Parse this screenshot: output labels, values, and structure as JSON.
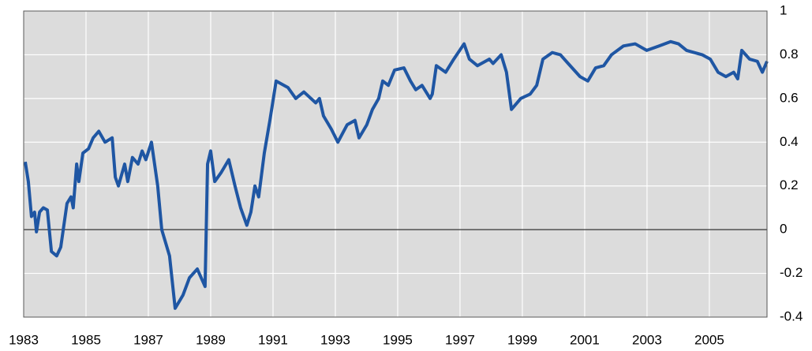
{
  "chart_data": {
    "type": "line",
    "xlim": [
      1983,
      2006.85
    ],
    "xticks": [
      1983,
      1985,
      1987,
      1989,
      1991,
      1993,
      1995,
      1997,
      1999,
      2001,
      2003,
      2005
    ],
    "ylim": [
      -0.4,
      1
    ],
    "yticks": [
      1,
      0.8,
      0.6,
      0.4,
      0.2,
      0,
      -0.2,
      -0.4
    ],
    "grid": true,
    "series": [
      {
        "color": "#1f56a3",
        "x": [
          1983.05,
          1983.15,
          1983.25,
          1983.35,
          1983.41,
          1983.51,
          1983.63,
          1983.76,
          1983.89,
          1984.06,
          1984.19,
          1984.39,
          1984.52,
          1984.59,
          1984.7,
          1984.77,
          1984.9,
          1985.08,
          1985.23,
          1985.41,
          1985.61,
          1985.84,
          1985.94,
          1986.04,
          1986.24,
          1986.34,
          1986.49,
          1986.67,
          1986.8,
          1986.92,
          1987.1,
          1987.3,
          1987.43,
          1987.68,
          1987.86,
          1988.11,
          1988.32,
          1988.57,
          1988.82,
          1988.9,
          1989.0,
          1989.13,
          1989.33,
          1989.58,
          1989.78,
          1989.96,
          1990.16,
          1990.29,
          1990.42,
          1990.54,
          1990.72,
          1990.9,
          1991.1,
          1991.48,
          1991.73,
          1991.99,
          1992.37,
          1992.49,
          1992.62,
          1992.87,
          1993.08,
          1993.38,
          1993.63,
          1993.76,
          1994.01,
          1994.19,
          1994.39,
          1994.52,
          1994.7,
          1994.9,
          1995.2,
          1995.41,
          1995.58,
          1995.78,
          1996.04,
          1996.11,
          1996.24,
          1996.54,
          1996.8,
          1997.13,
          1997.3,
          1997.56,
          1997.94,
          1998.06,
          1998.32,
          1998.49,
          1998.65,
          1998.95,
          1999.25,
          1999.46,
          1999.66,
          1999.96,
          2000.22,
          2000.47,
          2000.85,
          2001.1,
          2001.35,
          2001.61,
          2001.86,
          2002.24,
          2002.62,
          2002.99,
          2003.38,
          2003.76,
          2004.01,
          2004.27,
          2004.77,
          2005.03,
          2005.28,
          2005.53,
          2005.78,
          2005.91,
          2006.04,
          2006.29,
          2006.54,
          2006.7,
          2006.85
        ],
        "values": [
          0.31,
          0.22,
          0.06,
          0.08,
          -0.01,
          0.08,
          0.1,
          0.09,
          -0.1,
          -0.12,
          -0.08,
          0.12,
          0.15,
          0.1,
          0.3,
          0.22,
          0.35,
          0.37,
          0.42,
          0.45,
          0.4,
          0.42,
          0.24,
          0.2,
          0.3,
          0.22,
          0.33,
          0.3,
          0.36,
          0.32,
          0.4,
          0.2,
          0.0,
          -0.12,
          -0.36,
          -0.3,
          -0.22,
          -0.18,
          -0.26,
          0.3,
          0.36,
          0.22,
          0.26,
          0.32,
          0.2,
          0.1,
          0.02,
          0.08,
          0.2,
          0.15,
          0.35,
          0.5,
          0.68,
          0.65,
          0.6,
          0.63,
          0.58,
          0.6,
          0.52,
          0.46,
          0.4,
          0.48,
          0.5,
          0.42,
          0.48,
          0.55,
          0.6,
          0.68,
          0.66,
          0.73,
          0.74,
          0.68,
          0.64,
          0.66,
          0.6,
          0.62,
          0.75,
          0.72,
          0.78,
          0.85,
          0.78,
          0.75,
          0.78,
          0.76,
          0.8,
          0.72,
          0.55,
          0.6,
          0.62,
          0.66,
          0.78,
          0.81,
          0.8,
          0.76,
          0.7,
          0.68,
          0.74,
          0.75,
          0.8,
          0.84,
          0.85,
          0.82,
          0.84,
          0.86,
          0.85,
          0.82,
          0.8,
          0.78,
          0.72,
          0.7,
          0.72,
          0.69,
          0.82,
          0.78,
          0.77,
          0.72,
          0.77
        ]
      }
    ]
  }
}
